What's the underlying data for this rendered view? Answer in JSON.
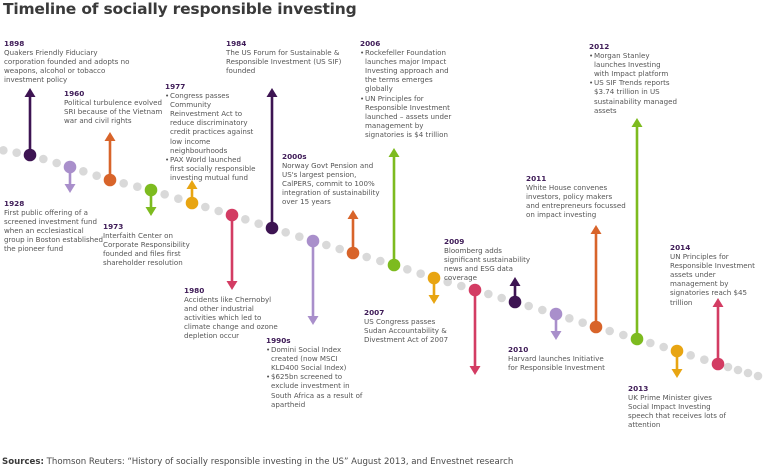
{
  "title": "Timeline of socially responsible investing",
  "colors": {
    "dark_purple": "#3d1452",
    "lilac": "#a98fcb",
    "orange": "#d8642a",
    "green": "#7dbb1f",
    "amber": "#e8a512",
    "crimson": "#d33c63",
    "track_dot": "#d9d9d9",
    "year_text": "#3e1b57"
  },
  "events": [
    {
      "year": "1898",
      "color": "dark_purple",
      "direction": "up",
      "text": "Quakers Friendly Fiduciary corporation founded and adopts no weapons, alcohol or tobacco investment policy"
    },
    {
      "year": "1928",
      "color": "lilac",
      "direction": "down",
      "text": "First public offering of a screened investment fund when an ecclesiastical group in Boston established the pioneer fund"
    },
    {
      "year": "1960",
      "color": "orange",
      "direction": "up",
      "text": "Political turbulence evolved SRI because of the Vietnam war and civil rights"
    },
    {
      "year": "1973",
      "color": "green",
      "direction": "down",
      "text": "Interfaith Center on Corporate Responsibility founded and files first shareholder resolution"
    },
    {
      "year": "1977",
      "color": "amber",
      "direction": "up",
      "bullets": [
        "Congress passes Community Reinvestment Act to reduce discriminatory credit practices against low income neighbourhoods",
        "PAX World launched first socially responsible investing mutual fund"
      ]
    },
    {
      "year": "1980",
      "color": "crimson",
      "direction": "down",
      "text": "Accidents like Chernobyl and other industrial activities which led to climate change and ozone depletion occur"
    },
    {
      "year": "1984",
      "color": "dark_purple",
      "direction": "up",
      "text": "The US Forum for Sustainable & Responsible Investment (US SIF) founded"
    },
    {
      "year": "1990s",
      "color": "lilac",
      "direction": "down",
      "bullets": [
        "Domini Social Index created (now MSCI KLD400 Social Index)",
        "$625bn screened to exclude investment in South Africa as a result of apartheid"
      ]
    },
    {
      "year": "2000s",
      "color": "orange",
      "direction": "up",
      "text": "Norway Govt Pension and US's largest pension, CalPERS, commit to 100% integration of sustainability over 15 years"
    },
    {
      "year": "2006",
      "color": "green",
      "direction": "up",
      "bullets": [
        "Rockefeller Foundation launches major Impact Investing approach and the terms emerges globally",
        "UN Principles for Responsible Investment launched – assets under management by signatories is $4 trillion"
      ]
    },
    {
      "year": "2007",
      "color": "amber",
      "direction": "down",
      "text": "US Congress passes Sudan Accountability & Divestment Act of 2007"
    },
    {
      "year": "2009",
      "color": "crimson",
      "direction": "down",
      "text": "Bloomberg adds significant sustainability news and ESG data coverage"
    },
    {
      "year": "",
      "color": "dark_purple",
      "direction": "up",
      "text": ""
    },
    {
      "year": "2010",
      "color": "lilac",
      "direction": "down",
      "text": "Harvard launches Initiative for Responsible Investment"
    },
    {
      "year": "2011",
      "color": "orange",
      "direction": "up",
      "text": "White House convenes investors, policy makers and entrepreneurs focussed on impact investing"
    },
    {
      "year": "2012",
      "color": "green",
      "direction": "up",
      "bullets": [
        "Morgan Stanley launches Investing with Impact platform",
        "US SIF Trends reports $3.74 trillion in US sustainability managed assets"
      ]
    },
    {
      "year": "2013",
      "color": "amber",
      "direction": "down",
      "text": "UK Prime Minister gives Social Impact Investing speech that receives lots of attention"
    },
    {
      "year": "2014",
      "color": "crimson",
      "direction": "up",
      "text": "UN Principles for Responsible Investment assets under management by signatories reach $45 trillion"
    }
  ],
  "sources": {
    "label": "Sources:",
    "text": "Thomson Reuters: “History of socially responsible investing in the US” August 2013, and Envestnet research"
  }
}
